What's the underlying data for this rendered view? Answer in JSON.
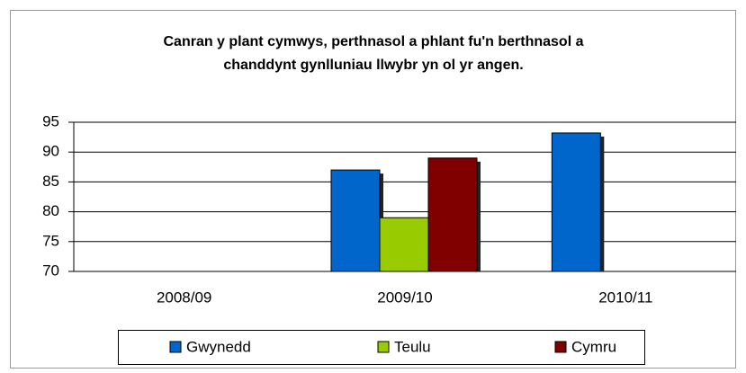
{
  "chart_data": {
    "type": "bar",
    "title": [
      "Canran y plant cymwys, perthnasol a phlant fu'n berthnasol a",
      "chanddynt gynlluniau llwybr yn ol yr angen."
    ],
    "categories": [
      "2008/09",
      "2009/10",
      "2010/11"
    ],
    "series": [
      {
        "name": "Gwynedd",
        "color": "#0066cc",
        "values": [
          null,
          87,
          93.2
        ]
      },
      {
        "name": "Teulu",
        "color": "#99cc00",
        "values": [
          null,
          79,
          null
        ]
      },
      {
        "name": "Cymru",
        "color": "#800000",
        "values": [
          null,
          89,
          null
        ]
      }
    ],
    "ylim": [
      70,
      95
    ],
    "yticks": [
      70,
      75,
      80,
      85,
      90,
      95
    ],
    "grid": true,
    "legend": "bottom"
  }
}
